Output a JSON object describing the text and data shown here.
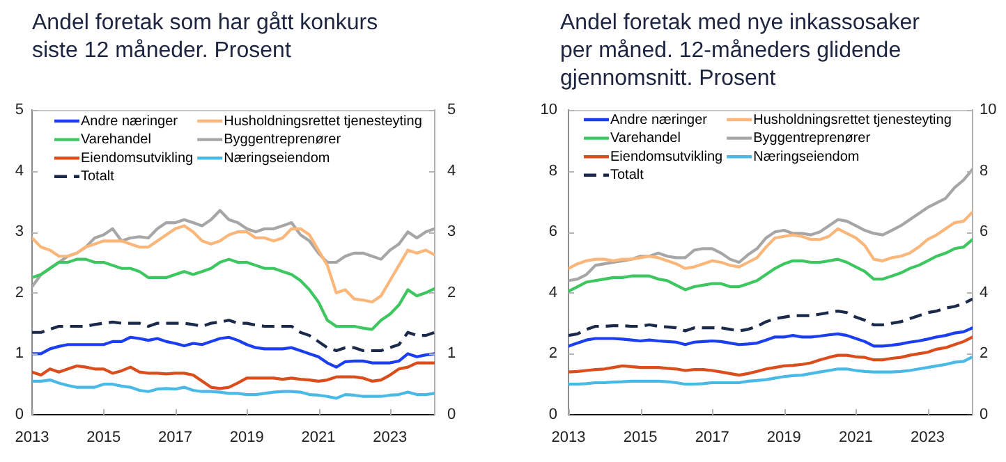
{
  "chart_data": [
    {
      "type": "line",
      "title": "Andel foretak som har gått konkurs siste 12 måneder. Prosent",
      "x": [
        2013,
        2013.25,
        2013.5,
        2013.75,
        2014,
        2014.25,
        2014.5,
        2014.75,
        2015,
        2015.25,
        2015.5,
        2015.75,
        2016,
        2016.25,
        2016.5,
        2016.75,
        2017,
        2017.25,
        2017.5,
        2017.75,
        2018,
        2018.25,
        2018.5,
        2018.75,
        2019,
        2019.25,
        2019.5,
        2019.75,
        2020,
        2020.25,
        2020.5,
        2020.75,
        2021,
        2021.25,
        2021.5,
        2021.75,
        2022,
        2022.25,
        2022.5,
        2022.75,
        2023,
        2023.25,
        2023.5,
        2023.75,
        2024,
        2024.25
      ],
      "xlim": [
        2013,
        2024.25
      ],
      "xticks": [
        2013,
        2015,
        2017,
        2019,
        2021,
        2023
      ],
      "ylim": [
        0,
        5
      ],
      "yticks": [
        0,
        1,
        2,
        3,
        4,
        5
      ],
      "y2lim": [
        0,
        5
      ],
      "y2ticks": [
        0,
        1,
        2,
        3,
        4,
        5
      ],
      "legend": "top left",
      "marker": "none",
      "series": [
        {
          "name": "Andre næringer",
          "color": "#1a3ef0",
          "values": [
            1.0,
            1.0,
            1.08,
            1.12,
            1.15,
            1.15,
            1.15,
            1.15,
            1.15,
            1.2,
            1.2,
            1.27,
            1.25,
            1.22,
            1.25,
            1.2,
            1.17,
            1.13,
            1.17,
            1.15,
            1.2,
            1.25,
            1.27,
            1.22,
            1.15,
            1.1,
            1.08,
            1.08,
            1.08,
            1.1,
            1.05,
            1.0,
            0.95,
            0.85,
            0.78,
            0.87,
            0.88,
            0.88,
            0.85,
            0.85,
            0.85,
            0.88,
            1.0,
            0.95,
            0.98,
            1.0
          ]
        },
        {
          "name": "Husholdningsrettet tjenesteyting",
          "color": "#fbb67a",
          "values": [
            2.9,
            2.75,
            2.7,
            2.6,
            2.6,
            2.65,
            2.75,
            2.8,
            2.85,
            2.85,
            2.85,
            2.8,
            2.75,
            2.75,
            2.85,
            2.95,
            3.05,
            3.1,
            3.0,
            2.85,
            2.8,
            2.85,
            2.95,
            3.0,
            3.0,
            2.9,
            2.9,
            2.85,
            2.9,
            3.05,
            3.05,
            2.95,
            2.7,
            2.45,
            2.0,
            2.05,
            1.9,
            1.88,
            1.85,
            1.95,
            2.2,
            2.45,
            2.7,
            2.65,
            2.7,
            2.62
          ]
        },
        {
          "name": "Varehandel",
          "color": "#3ec760",
          "values": [
            2.25,
            2.3,
            2.4,
            2.5,
            2.5,
            2.55,
            2.55,
            2.5,
            2.5,
            2.45,
            2.4,
            2.4,
            2.35,
            2.25,
            2.25,
            2.25,
            2.3,
            2.35,
            2.3,
            2.35,
            2.4,
            2.5,
            2.55,
            2.5,
            2.5,
            2.45,
            2.4,
            2.4,
            2.35,
            2.3,
            2.2,
            2.05,
            1.85,
            1.55,
            1.45,
            1.45,
            1.45,
            1.42,
            1.4,
            1.55,
            1.65,
            1.8,
            2.05,
            1.95,
            2.0,
            2.07
          ]
        },
        {
          "name": "Byggentreprenører",
          "color": "#a6a6a6",
          "values": [
            2.1,
            2.3,
            2.4,
            2.5,
            2.6,
            2.65,
            2.75,
            2.9,
            2.95,
            3.05,
            2.85,
            2.9,
            2.92,
            2.9,
            3.05,
            3.15,
            3.15,
            3.2,
            3.15,
            3.1,
            3.2,
            3.35,
            3.2,
            3.15,
            3.05,
            3.0,
            3.05,
            3.05,
            3.1,
            3.15,
            2.95,
            2.85,
            2.65,
            2.5,
            2.5,
            2.6,
            2.65,
            2.65,
            2.6,
            2.55,
            2.7,
            2.8,
            3.0,
            2.9,
            3.0,
            3.05
          ]
        },
        {
          "name": "Eiendomsutvikling",
          "color": "#d94e1c",
          "values": [
            0.7,
            0.65,
            0.75,
            0.7,
            0.75,
            0.8,
            0.78,
            0.75,
            0.75,
            0.68,
            0.72,
            0.78,
            0.7,
            0.68,
            0.68,
            0.67,
            0.68,
            0.68,
            0.65,
            0.55,
            0.45,
            0.43,
            0.45,
            0.52,
            0.6,
            0.6,
            0.6,
            0.6,
            0.58,
            0.6,
            0.58,
            0.57,
            0.55,
            0.57,
            0.62,
            0.62,
            0.62,
            0.6,
            0.55,
            0.57,
            0.65,
            0.75,
            0.78,
            0.85,
            0.85,
            0.85
          ]
        },
        {
          "name": "Næringseiendom",
          "color": "#4ab9e6",
          "values": [
            0.55,
            0.55,
            0.57,
            0.52,
            0.48,
            0.45,
            0.45,
            0.45,
            0.5,
            0.5,
            0.47,
            0.45,
            0.4,
            0.38,
            0.42,
            0.43,
            0.42,
            0.45,
            0.4,
            0.38,
            0.38,
            0.37,
            0.35,
            0.35,
            0.33,
            0.33,
            0.35,
            0.37,
            0.38,
            0.38,
            0.37,
            0.33,
            0.32,
            0.3,
            0.27,
            0.33,
            0.32,
            0.3,
            0.3,
            0.3,
            0.32,
            0.33,
            0.37,
            0.33,
            0.33,
            0.35
          ]
        },
        {
          "name": "Totalt",
          "color": "#1b2a4a",
          "line_style": "dashed",
          "values": [
            1.35,
            1.35,
            1.4,
            1.45,
            1.45,
            1.45,
            1.45,
            1.48,
            1.5,
            1.52,
            1.5,
            1.5,
            1.5,
            1.45,
            1.5,
            1.5,
            1.5,
            1.5,
            1.48,
            1.45,
            1.5,
            1.52,
            1.55,
            1.5,
            1.5,
            1.47,
            1.45,
            1.45,
            1.45,
            1.45,
            1.35,
            1.3,
            1.2,
            1.1,
            1.05,
            1.1,
            1.1,
            1.05,
            1.05,
            1.05,
            1.1,
            1.15,
            1.35,
            1.3,
            1.3,
            1.35
          ]
        }
      ]
    },
    {
      "type": "line",
      "title": "Andel foretak med nye inkassosaker per måned. 12-måneders glidende gjennomsnitt. Prosent",
      "x": [
        2013,
        2013.25,
        2013.5,
        2013.75,
        2014,
        2014.25,
        2014.5,
        2014.75,
        2015,
        2015.25,
        2015.5,
        2015.75,
        2016,
        2016.25,
        2016.5,
        2016.75,
        2017,
        2017.25,
        2017.5,
        2017.75,
        2018,
        2018.25,
        2018.5,
        2018.75,
        2019,
        2019.25,
        2019.5,
        2019.75,
        2020,
        2020.25,
        2020.5,
        2020.75,
        2021,
        2021.25,
        2021.5,
        2021.75,
        2022,
        2022.25,
        2022.5,
        2022.75,
        2023,
        2023.25,
        2023.5,
        2023.75,
        2024,
        2024.25
      ],
      "xlim": [
        2013,
        2024.25
      ],
      "xticks": [
        2013,
        2015,
        2017,
        2019,
        2021,
        2023
      ],
      "ylim": [
        0,
        10
      ],
      "yticks": [
        0,
        2,
        4,
        6,
        8,
        10
      ],
      "y2lim": [
        0,
        10
      ],
      "y2ticks": [
        0,
        2,
        4,
        6,
        8,
        10
      ],
      "legend": "top left",
      "marker": "none",
      "series": [
        {
          "name": "Andre næringer",
          "color": "#1a3ef0",
          "values": [
            2.25,
            2.35,
            2.45,
            2.5,
            2.5,
            2.5,
            2.48,
            2.45,
            2.42,
            2.45,
            2.42,
            2.4,
            2.38,
            2.3,
            2.38,
            2.4,
            2.42,
            2.4,
            2.35,
            2.3,
            2.32,
            2.35,
            2.45,
            2.55,
            2.55,
            2.6,
            2.55,
            2.55,
            2.58,
            2.62,
            2.65,
            2.6,
            2.5,
            2.4,
            2.25,
            2.25,
            2.28,
            2.32,
            2.38,
            2.42,
            2.48,
            2.55,
            2.6,
            2.68,
            2.72,
            2.85
          ]
        },
        {
          "name": "Husholdningsrettet tjenesteyting",
          "color": "#fbb67a",
          "values": [
            4.8,
            4.95,
            5.05,
            5.1,
            5.1,
            5.05,
            5.1,
            5.1,
            5.15,
            5.2,
            5.15,
            5.05,
            4.95,
            4.8,
            4.85,
            4.95,
            5.05,
            5.0,
            4.9,
            4.85,
            5.0,
            5.15,
            5.5,
            5.8,
            5.85,
            5.9,
            5.85,
            5.75,
            5.75,
            5.85,
            6.1,
            5.95,
            5.8,
            5.55,
            5.1,
            5.05,
            5.15,
            5.2,
            5.3,
            5.5,
            5.75,
            5.9,
            6.1,
            6.3,
            6.35,
            6.65
          ]
        },
        {
          "name": "Varehandel",
          "color": "#3ec760",
          "values": [
            4.05,
            4.2,
            4.35,
            4.4,
            4.45,
            4.5,
            4.5,
            4.55,
            4.55,
            4.55,
            4.45,
            4.4,
            4.25,
            4.1,
            4.2,
            4.25,
            4.3,
            4.3,
            4.2,
            4.2,
            4.3,
            4.4,
            4.6,
            4.8,
            4.95,
            5.05,
            5.05,
            5.0,
            5.0,
            5.05,
            5.1,
            5.0,
            4.85,
            4.7,
            4.45,
            4.45,
            4.55,
            4.65,
            4.8,
            4.9,
            5.05,
            5.2,
            5.3,
            5.45,
            5.5,
            5.75
          ]
        },
        {
          "name": "Byggentreprenører",
          "color": "#a6a6a6",
          "values": [
            4.4,
            4.45,
            4.6,
            4.9,
            4.95,
            5.0,
            5.05,
            5.1,
            5.2,
            5.2,
            5.3,
            5.2,
            5.15,
            5.15,
            5.4,
            5.45,
            5.45,
            5.3,
            5.1,
            5.0,
            5.25,
            5.45,
            5.8,
            6.0,
            6.05,
            5.95,
            5.95,
            5.9,
            6.0,
            6.2,
            6.4,
            6.35,
            6.2,
            6.05,
            5.95,
            5.9,
            6.05,
            6.2,
            6.4,
            6.6,
            6.8,
            6.95,
            7.1,
            7.45,
            7.7,
            8.05
          ]
        },
        {
          "name": "Eiendomsutvikling",
          "color": "#d94e1c",
          "values": [
            1.4,
            1.42,
            1.45,
            1.48,
            1.5,
            1.55,
            1.6,
            1.58,
            1.55,
            1.55,
            1.55,
            1.52,
            1.5,
            1.45,
            1.48,
            1.48,
            1.45,
            1.4,
            1.35,
            1.3,
            1.35,
            1.42,
            1.5,
            1.55,
            1.6,
            1.62,
            1.65,
            1.7,
            1.8,
            1.88,
            1.95,
            1.95,
            1.9,
            1.88,
            1.8,
            1.8,
            1.85,
            1.88,
            1.95,
            2.0,
            2.05,
            2.15,
            2.2,
            2.3,
            2.4,
            2.55
          ]
        },
        {
          "name": "Næringseiendom",
          "color": "#4ab9e6",
          "values": [
            1.0,
            1.0,
            1.02,
            1.05,
            1.05,
            1.07,
            1.08,
            1.1,
            1.1,
            1.1,
            1.1,
            1.08,
            1.05,
            1.0,
            1.0,
            1.02,
            1.05,
            1.05,
            1.05,
            1.05,
            1.1,
            1.12,
            1.15,
            1.2,
            1.25,
            1.28,
            1.3,
            1.35,
            1.4,
            1.45,
            1.5,
            1.5,
            1.45,
            1.42,
            1.4,
            1.4,
            1.4,
            1.42,
            1.45,
            1.5,
            1.55,
            1.6,
            1.65,
            1.72,
            1.75,
            1.9
          ]
        },
        {
          "name": "Totalt",
          "color": "#1b2a4a",
          "line_style": "dashed",
          "values": [
            2.6,
            2.65,
            2.8,
            2.9,
            2.9,
            2.92,
            2.92,
            2.9,
            2.9,
            2.95,
            2.9,
            2.88,
            2.85,
            2.75,
            2.85,
            2.85,
            2.85,
            2.85,
            2.8,
            2.75,
            2.8,
            2.9,
            3.05,
            3.15,
            3.2,
            3.25,
            3.25,
            3.25,
            3.3,
            3.35,
            3.4,
            3.35,
            3.2,
            3.1,
            2.95,
            2.95,
            3.0,
            3.05,
            3.15,
            3.25,
            3.35,
            3.4,
            3.5,
            3.55,
            3.65,
            3.8
          ]
        }
      ]
    }
  ]
}
